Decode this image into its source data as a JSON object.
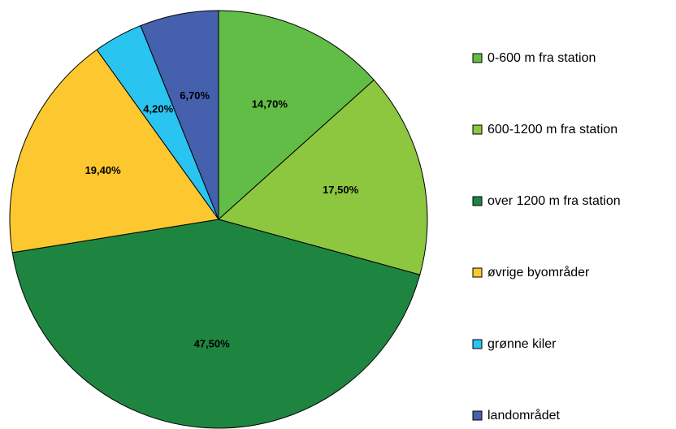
{
  "chart_data": {
    "type": "pie",
    "categories": [
      "0-600 m fra station",
      "600-1200 m fra station",
      "over 1200 m fra station",
      "øvrige byområder",
      "grønne kiler",
      "landområdet"
    ],
    "values": [
      14.7,
      17.5,
      47.5,
      19.4,
      4.2,
      6.7
    ],
    "value_labels": [
      "14,70%",
      "17,50%",
      "47,50%",
      "19,40%",
      "4,20%",
      "6,70%"
    ],
    "colors": [
      "#62bd46",
      "#8dc63f",
      "#1e8541",
      "#fdc82f",
      "#29c4f0",
      "#4560ad"
    ],
    "legend": "right"
  }
}
